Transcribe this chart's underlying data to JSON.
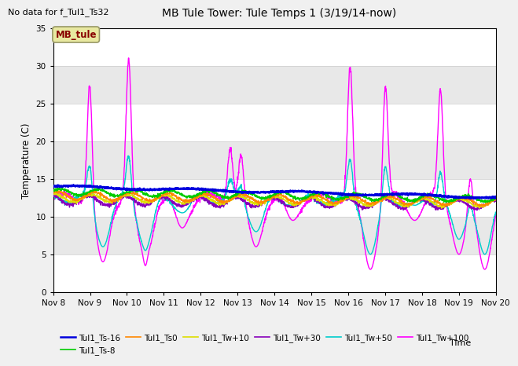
{
  "title": "MB Tule Tower: Tule Temps 1 (3/19/14-now)",
  "subtitle": "No data for f_Tul1_Ts32",
  "xlabel": "Time",
  "ylabel": "Temperature (C)",
  "ylim": [
    0,
    35
  ],
  "xlim": [
    0,
    12
  ],
  "x_tick_labels": [
    "Nov 8",
    "Nov 9",
    "Nov 10",
    "Nov 11",
    "Nov 12",
    "Nov 13",
    "Nov 14",
    "Nov 15",
    "Nov 16",
    "Nov 17",
    "Nov 18",
    "Nov 19",
    "Nov 20"
  ],
  "background_color": "#f0f0f0",
  "plot_bg_color": "#ffffff",
  "band_color": "#e8e8e8",
  "grid_color": "#cccccc",
  "mb_tule_box": {
    "text": "MB_tule",
    "bg": "#e8e8a0",
    "fg": "#880000"
  },
  "series_colors": {
    "Tul1_Ts-16": "#0000dd",
    "Tul1_Ts-8": "#00cc00",
    "Tul1_Ts0": "#ff8800",
    "Tul1_Tw+10": "#dddd00",
    "Tul1_Tw+30": "#8800bb",
    "Tul1_Tw+50": "#00cccc",
    "Tul1_Tw+100": "#ff00ff"
  },
  "spike_centers": [
    1.0,
    2.05,
    2.5,
    4.8,
    5.1,
    8.05,
    9.0,
    10.5,
    11.3
  ],
  "spike_heights": [
    31.2,
    32.0,
    27.5,
    19.5,
    19.0,
    30.0,
    29.2,
    27.3,
    19.0
  ],
  "dip_centers": [
    1.35,
    2.5,
    3.5,
    5.5,
    6.5,
    8.6,
    9.8,
    11.0,
    11.7
  ],
  "dip_values": [
    4.0,
    3.5,
    8.5,
    6.0,
    9.5,
    3.0,
    9.5,
    5.0,
    3.0
  ]
}
